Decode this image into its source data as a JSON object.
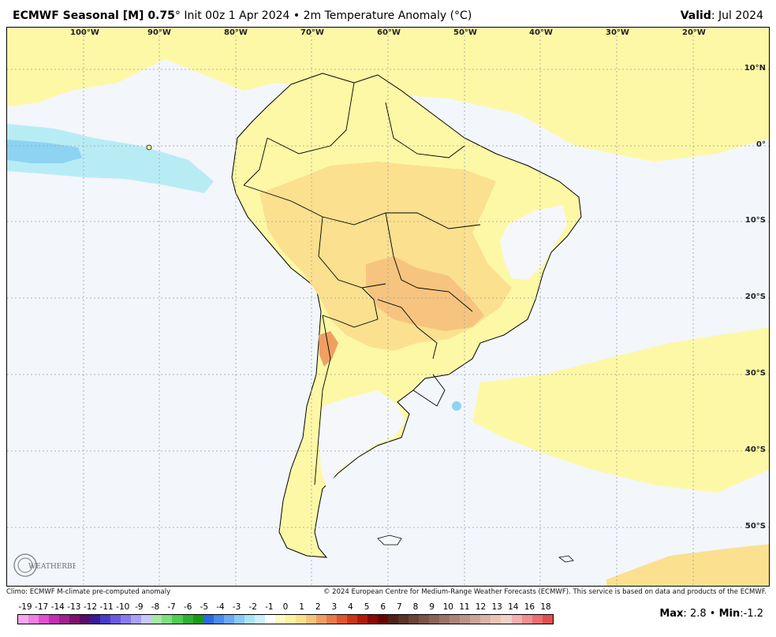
{
  "header": {
    "model": "ECMWF Seasonal [M] 0.75",
    "degree": "°",
    "init": "Init 00z 1 Apr 2024",
    "bullet": "•",
    "field": "2m Temperature Anomaly (",
    "unit": "°C",
    "field_close": ")",
    "valid_label": "Valid",
    "valid_value": "Jul 2024"
  },
  "map": {
    "longitude_labels": [
      "100°W",
      "90°W",
      "80°W",
      "70°W",
      "60°W",
      "50°W",
      "40°W",
      "30°W",
      "20°W"
    ],
    "latitude_labels": [
      "10°N",
      "0°",
      "10°S",
      "20°S",
      "30°S",
      "40°S",
      "50°S"
    ],
    "colors": {
      "ocean": "#f3f6fb",
      "neutral_land": "#f5f7fb",
      "warm1": "#fdf8a6",
      "warm2": "#fbe08f",
      "warm3": "#f6c47e",
      "warm4": "#ef9f62",
      "cool1": "#b8ecf5",
      "cool2": "#8ed3f2",
      "border": "#000000"
    },
    "logo_text": "WEATHERBELL"
  },
  "footer": {
    "climo": "Climo: ECMWF M-climate pre-computed anomaly",
    "copyright": "© 2024 European Centre for Medium-Range Weather Forecasts (ECMWF). This service is based on data and products of the ECMWF."
  },
  "colorbar": {
    "labels": [
      "-19",
      "-17",
      "-14",
      "-13",
      "-12",
      "-11",
      "-10",
      "-9",
      "-8",
      "-7",
      "-6",
      "-5",
      "-4",
      "-3",
      "-2",
      "-1",
      "0",
      "1",
      "2",
      "3",
      "4",
      "5",
      "6",
      "7",
      "8",
      "9",
      "10",
      "11",
      "12",
      "13",
      "14",
      "16",
      "18"
    ],
    "colors": [
      "#f7a8ec",
      "#f080e0",
      "#e050d0",
      "#c030b0",
      "#a02090",
      "#801070",
      "#5a0a6a",
      "#3a1a9a",
      "#4a3ac8",
      "#6a5ae0",
      "#8a7aef",
      "#aaa0f5",
      "#c8c8fa",
      "#a8e8a8",
      "#80dd80",
      "#50cc50",
      "#30b030",
      "#1a9a1a",
      "#2a6ae0",
      "#4a8aef",
      "#6aaaf5",
      "#8acaf8",
      "#aae4fb",
      "#cdf0fc",
      "#ffffff",
      "#fffcc0",
      "#fdf3a0",
      "#fbe08f",
      "#f6c47e",
      "#ef9f62",
      "#e87a48",
      "#e0542e",
      "#cc3418",
      "#b01a0a",
      "#8a0a04",
      "#6a0402",
      "#4a2418",
      "#5a3428",
      "#6a4438",
      "#7a5448",
      "#8a6458",
      "#9a7468",
      "#aa8478",
      "#ba9488",
      "#caa498",
      "#dab4a8",
      "#e8c4b8",
      "#f0d0c8",
      "#f4b0b0",
      "#f09090",
      "#e87070",
      "#e05050"
    ]
  },
  "stats": {
    "max_label": "Max",
    "max_value": "2.8",
    "min_label": "Min",
    "min_value": "-1.2"
  }
}
